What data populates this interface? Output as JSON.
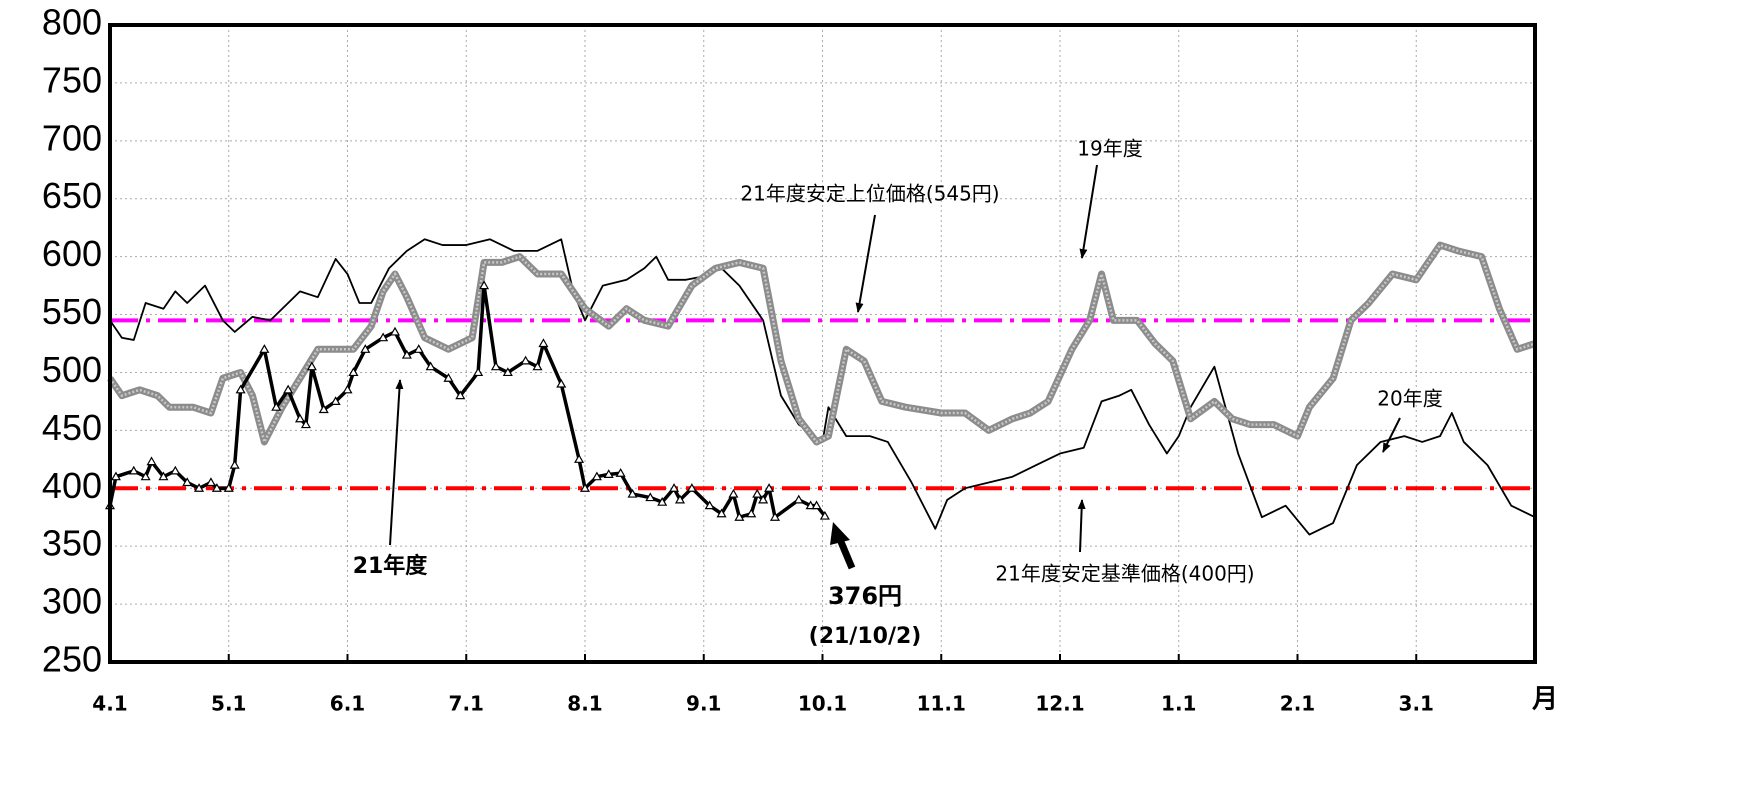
{
  "chart_data": {
    "type": "line",
    "x_label": "月",
    "xlim": [
      0,
      12
    ],
    "xticks": [
      {
        "value": 0,
        "label": "4.1"
      },
      {
        "value": 1,
        "label": "5.1"
      },
      {
        "value": 2,
        "label": "6.1"
      },
      {
        "value": 3,
        "label": "7.1"
      },
      {
        "value": 4,
        "label": "8.1"
      },
      {
        "value": 5,
        "label": "9.1"
      },
      {
        "value": 6,
        "label": "10.1"
      },
      {
        "value": 7,
        "label": "11.1"
      },
      {
        "value": 8,
        "label": "12.1"
      },
      {
        "value": 9,
        "label": "1.1"
      },
      {
        "value": 10,
        "label": "2.1"
      },
      {
        "value": 11,
        "label": "3.1"
      }
    ],
    "ylim": [
      250,
      800
    ],
    "yticks": [
      250,
      300,
      350,
      400,
      450,
      500,
      550,
      600,
      650,
      700,
      750,
      800
    ],
    "grid": true,
    "series": [
      {
        "name": "19年度",
        "color": "#000000",
        "x": [
          0,
          0.1,
          0.2,
          0.3,
          0.45,
          0.55,
          0.65,
          0.8,
          0.95,
          1.05,
          1.2,
          1.35,
          1.5,
          1.6,
          1.75,
          1.9,
          2.0,
          2.1,
          2.2,
          2.35,
          2.5,
          2.65,
          2.8,
          3.0,
          3.2,
          3.4,
          3.6,
          3.8,
          3.9,
          4.0,
          4.15,
          4.35,
          4.5,
          4.6,
          4.7,
          4.85,
          5.0,
          5.15,
          5.3,
          5.5,
          5.65,
          5.8,
          6.0,
          6.05,
          6.2,
          6.4,
          6.55,
          6.75,
          6.95,
          7.05,
          7.2,
          7.4,
          7.6,
          7.8,
          8.0,
          8.2,
          8.35,
          8.5,
          8.6,
          8.75,
          8.9,
          9.0,
          9.1,
          9.3,
          9.5,
          9.7,
          9.9,
          10.1,
          10.3,
          10.5,
          10.7,
          10.9,
          11.05,
          11.2,
          11.3,
          11.4,
          11.6,
          11.8,
          12.0
        ],
        "values": [
          545,
          530,
          528,
          560,
          555,
          570,
          560,
          575,
          545,
          535,
          548,
          545,
          560,
          570,
          565,
          598,
          585,
          560,
          560,
          590,
          605,
          615,
          610,
          610,
          615,
          605,
          605,
          615,
          570,
          545,
          575,
          580,
          590,
          600,
          580,
          580,
          583,
          590,
          575,
          545,
          480,
          455,
          440,
          470,
          445,
          445,
          440,
          405,
          365,
          390,
          400,
          405,
          410,
          420,
          430,
          435,
          475,
          480,
          485,
          455,
          430,
          445,
          470,
          505,
          430,
          375,
          385,
          360,
          370,
          420,
          440,
          445,
          440,
          445,
          465,
          440,
          420,
          385,
          375
        ]
      },
      {
        "name": "20年度",
        "color": "#8c8c8c",
        "x": [
          0,
          0.1,
          0.25,
          0.4,
          0.5,
          0.7,
          0.85,
          0.95,
          1.1,
          1.2,
          1.3,
          1.45,
          1.6,
          1.75,
          1.9,
          2.05,
          2.2,
          2.3,
          2.4,
          2.5,
          2.65,
          2.85,
          3.05,
          3.15,
          3.3,
          3.45,
          3.6,
          3.8,
          4.0,
          4.2,
          4.35,
          4.5,
          4.7,
          4.9,
          5.1,
          5.3,
          5.5,
          5.65,
          5.8,
          5.95,
          6.05,
          6.2,
          6.35,
          6.5,
          6.7,
          7.0,
          7.2,
          7.4,
          7.6,
          7.75,
          7.9,
          8.1,
          8.25,
          8.35,
          8.45,
          8.65,
          8.8,
          8.95,
          9.1,
          9.3,
          9.45,
          9.6,
          9.8,
          10.0,
          10.1,
          10.3,
          10.45,
          10.6,
          10.8,
          11.0,
          11.2,
          11.35,
          11.55,
          11.7,
          11.85,
          12.0
        ],
        "values": [
          495,
          480,
          485,
          480,
          470,
          470,
          465,
          495,
          500,
          480,
          440,
          470,
          495,
          520,
          520,
          520,
          540,
          570,
          585,
          565,
          530,
          520,
          530,
          595,
          595,
          600,
          585,
          585,
          555,
          540,
          555,
          545,
          540,
          575,
          590,
          595,
          590,
          510,
          460,
          440,
          445,
          520,
          510,
          475,
          470,
          465,
          465,
          450,
          460,
          465,
          475,
          520,
          545,
          585,
          545,
          545,
          525,
          510,
          460,
          475,
          460,
          455,
          455,
          445,
          470,
          495,
          545,
          560,
          585,
          580,
          610,
          605,
          600,
          555,
          520,
          525
        ]
      },
      {
        "name": "21年度",
        "color": "#000000",
        "x": [
          0,
          0.05,
          0.2,
          0.3,
          0.35,
          0.45,
          0.55,
          0.65,
          0.75,
          0.85,
          0.9,
          1.0,
          1.05,
          1.1,
          1.3,
          1.4,
          1.5,
          1.6,
          1.65,
          1.7,
          1.8,
          1.9,
          2.0,
          2.05,
          2.15,
          2.3,
          2.4,
          2.5,
          2.6,
          2.7,
          2.85,
          2.95,
          3.1,
          3.15,
          3.25,
          3.35,
          3.5,
          3.6,
          3.65,
          3.8,
          3.95,
          4.0,
          4.1,
          4.2,
          4.3,
          4.4,
          4.55,
          4.65,
          4.75,
          4.8,
          4.9,
          5.05,
          5.15,
          5.25,
          5.3,
          5.4,
          5.45,
          5.5,
          5.55,
          5.6,
          5.8,
          5.9,
          5.95,
          6.02
        ],
        "values": [
          385,
          410,
          415,
          410,
          423,
          410,
          415,
          405,
          400,
          405,
          400,
          400,
          420,
          485,
          520,
          470,
          485,
          460,
          455,
          505,
          468,
          475,
          485,
          500,
          520,
          530,
          535,
          515,
          520,
          505,
          495,
          480,
          500,
          575,
          505,
          500,
          510,
          505,
          525,
          490,
          425,
          400,
          410,
          412,
          413,
          395,
          392,
          388,
          400,
          390,
          400,
          385,
          378,
          395,
          375,
          378,
          395,
          390,
          400,
          375,
          390,
          385,
          385,
          376
        ]
      }
    ],
    "reference_lines": [
      {
        "value": 545,
        "color": "#ff00ff",
        "label": "21年度安定上位価格(545円)"
      },
      {
        "value": 400,
        "color": "#ff0000",
        "label": "21年度安定基準価格(400円)"
      }
    ],
    "annotations": [
      "376円",
      "(21/10/2)"
    ]
  }
}
